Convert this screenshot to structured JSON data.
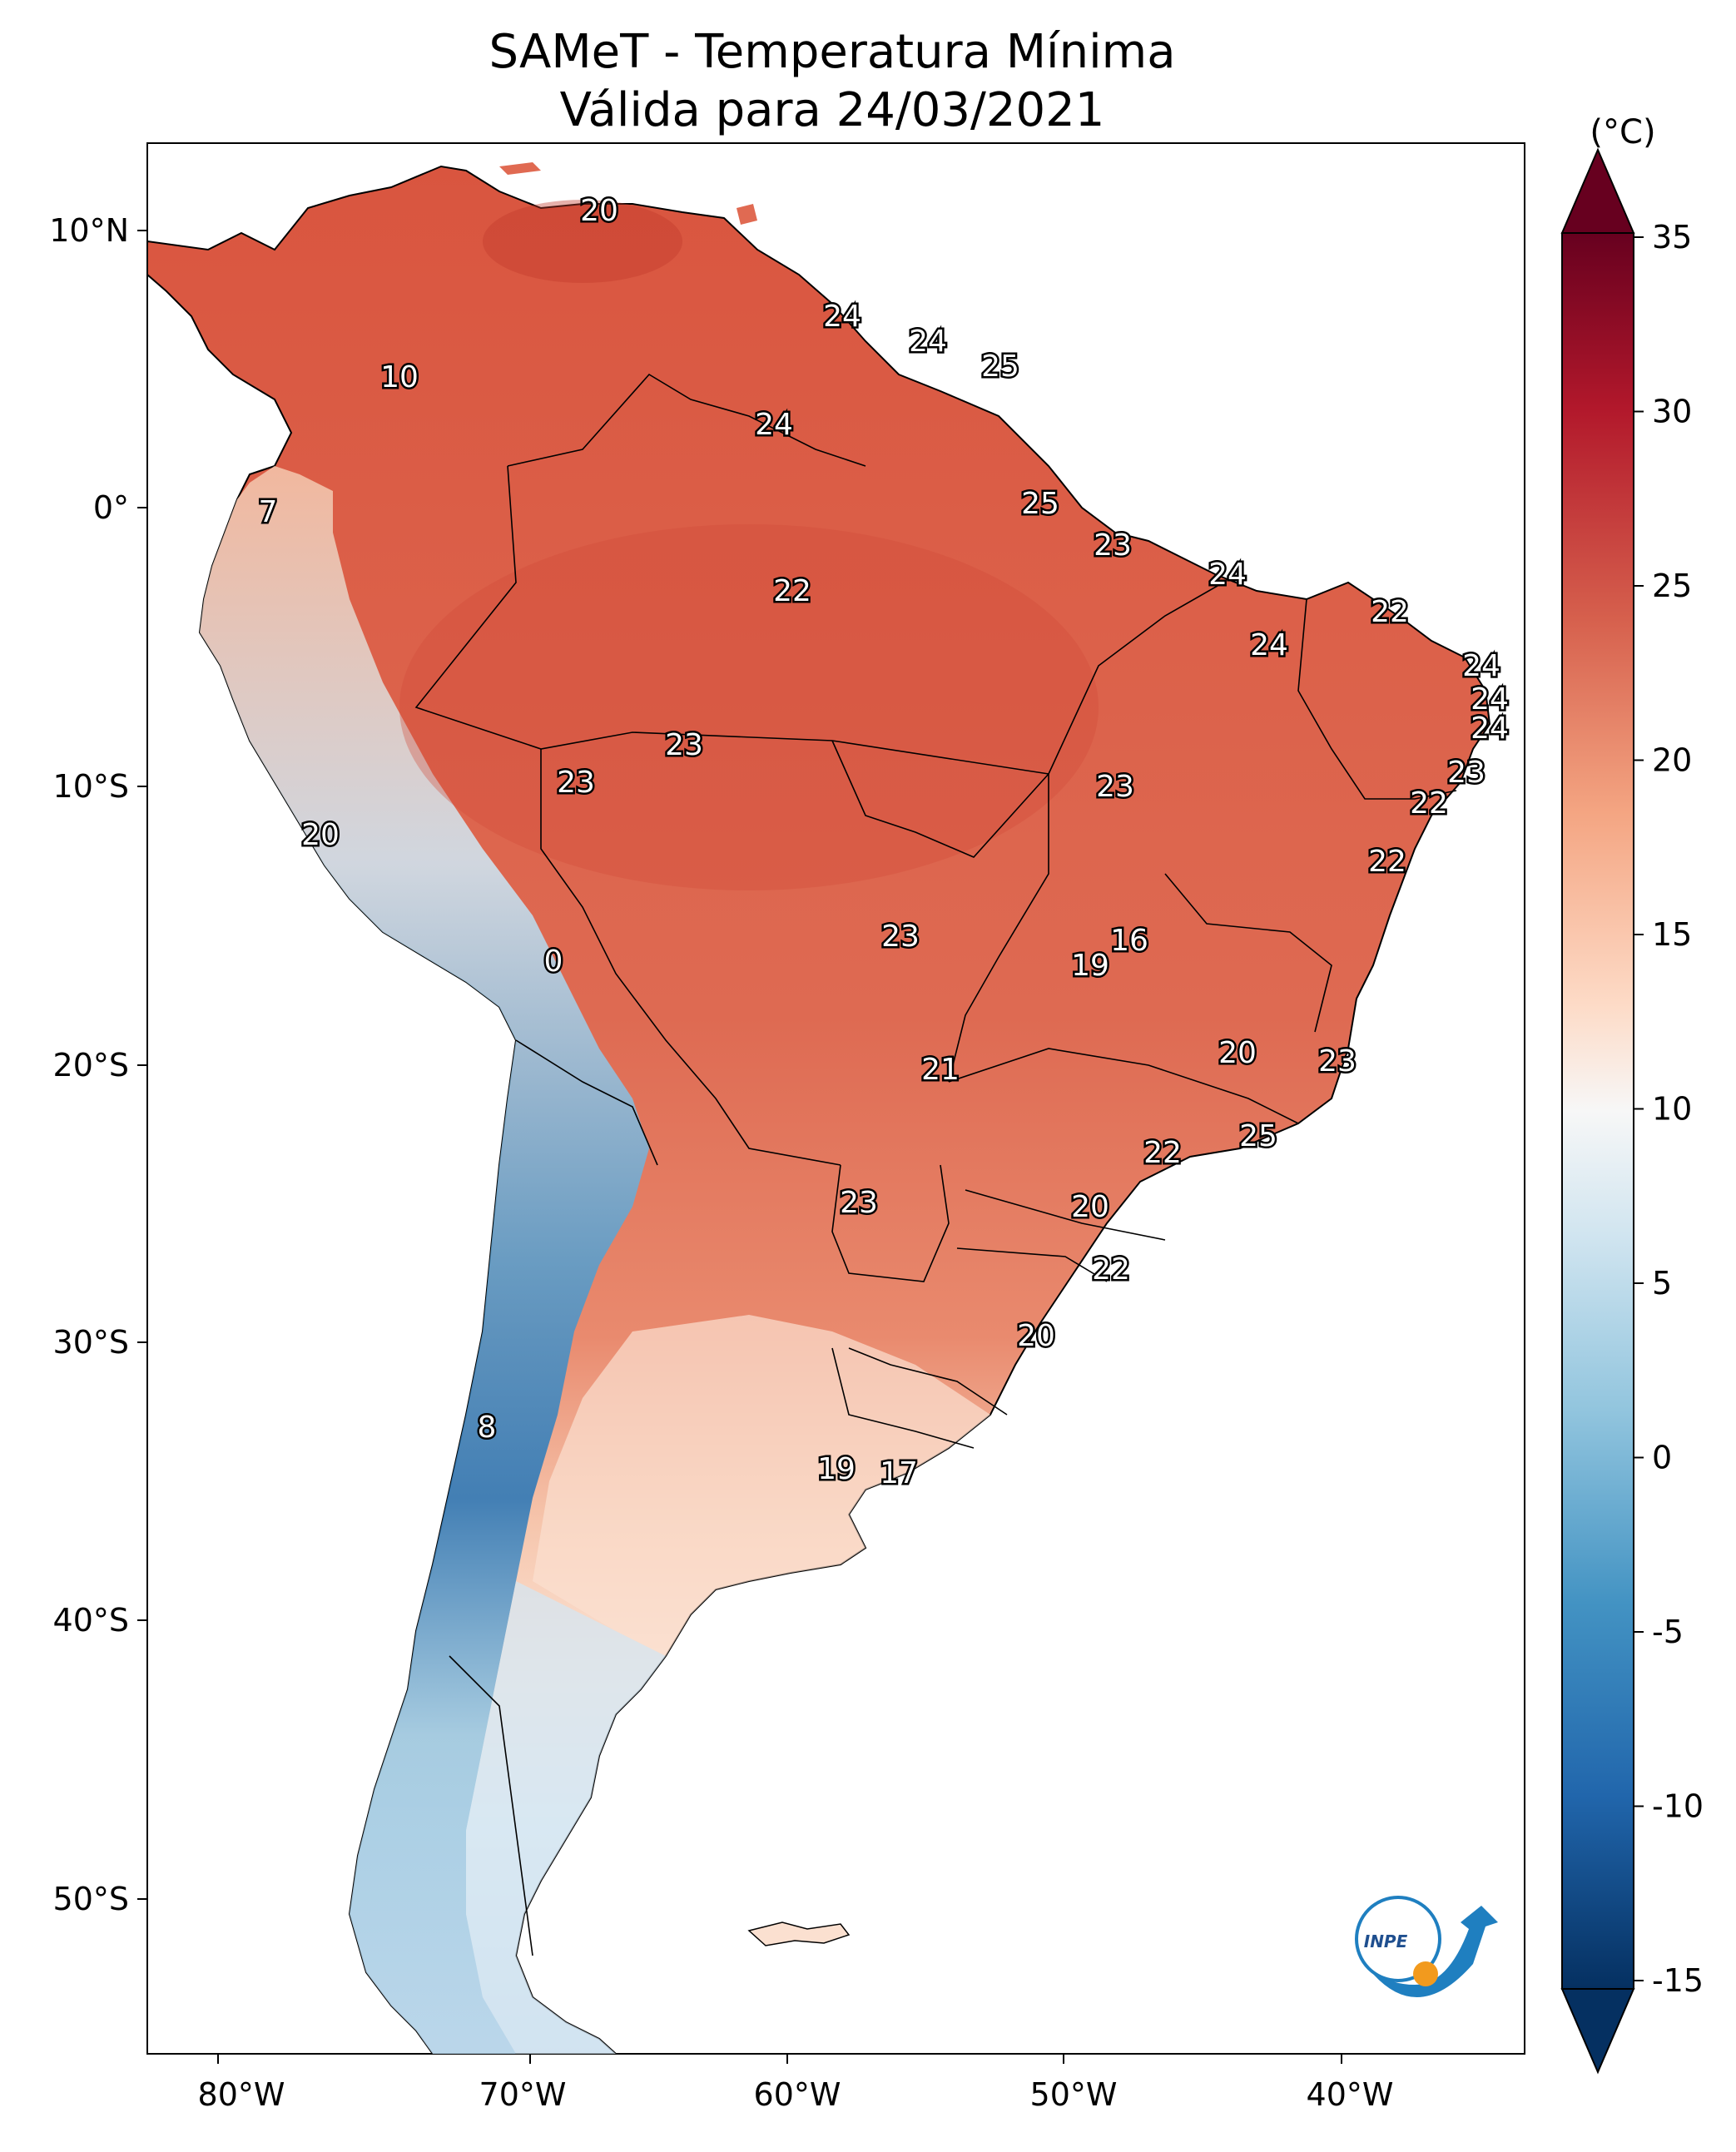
{
  "title": {
    "line1": "SAMeT - Temperatura Mínima",
    "line2": "Válida para 24/03/2021"
  },
  "map": {
    "lon_labels": [
      "80°W",
      "70°W",
      "60°W",
      "50°W",
      "40°W"
    ],
    "lat_labels": [
      "10°N",
      "0°",
      "10°S",
      "20°S",
      "30°S",
      "40°S",
      "50°S"
    ],
    "contour_labels": [
      "20",
      "10",
      "24",
      "24",
      "25",
      "24",
      "7",
      "25",
      "23",
      "22",
      "24",
      "22",
      "24",
      "24",
      "24",
      "24",
      "23",
      "23",
      "23",
      "23",
      "22",
      "20",
      "22",
      "16",
      "0",
      "23",
      "19",
      "20",
      "21",
      "23",
      "25",
      "22",
      "20",
      "23",
      "22",
      "20",
      "8",
      "19",
      "17"
    ],
    "logo_text": "INPE"
  },
  "colorbar": {
    "unit": "(°C)",
    "ticks": [
      "35",
      "30",
      "25",
      "20",
      "15",
      "10",
      "5",
      "0",
      "-5",
      "-10",
      "-15"
    ],
    "colors": [
      "#67001f",
      "#b2182b",
      "#d6604d",
      "#f4a582",
      "#fddbc7",
      "#f7f7f7",
      "#d1e5f0",
      "#92c5de",
      "#4393c3",
      "#2166ac",
      "#053061"
    ]
  }
}
